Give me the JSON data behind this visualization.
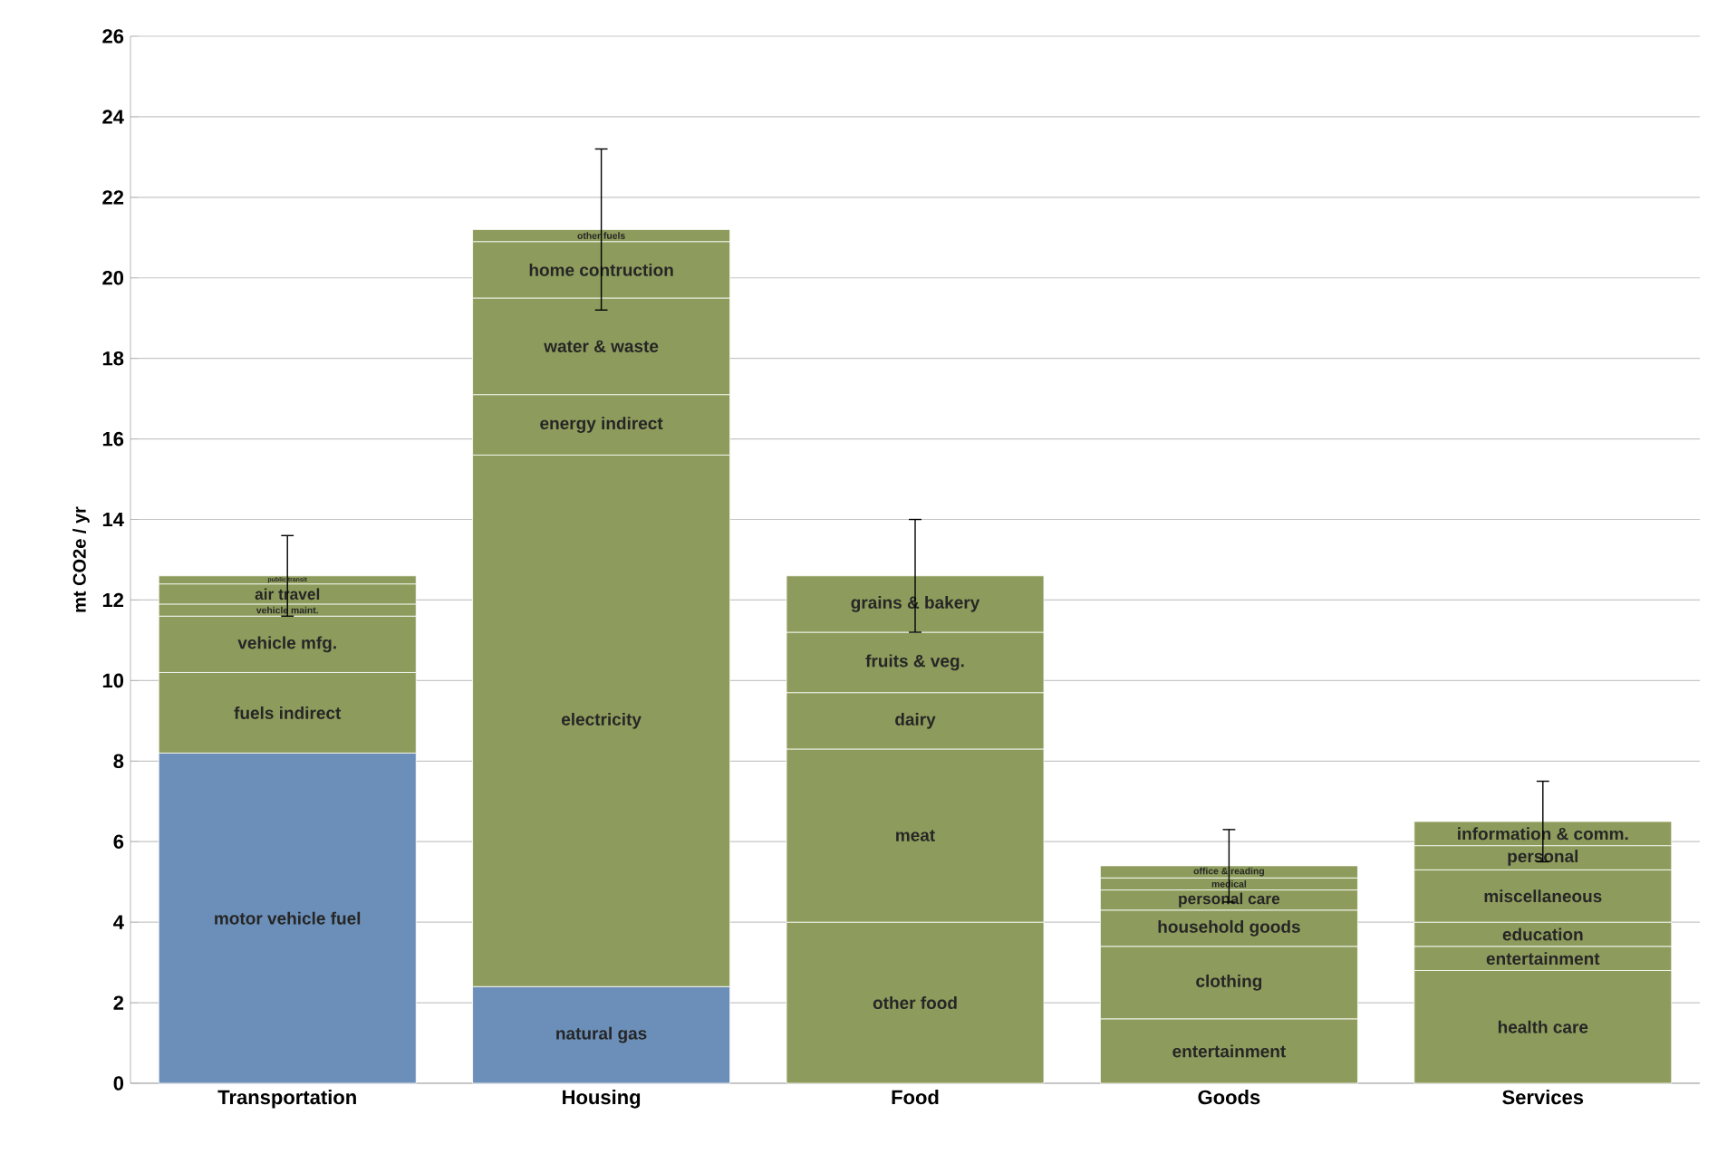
{
  "chart_data": {
    "type": "bar",
    "stacked": true,
    "ylabel": "mt CO2e / yr",
    "categories": [
      "Transportation",
      "Housing",
      "Food",
      "Goods",
      "Services"
    ],
    "ylim": [
      0,
      26
    ],
    "yticks": [
      0,
      2,
      4,
      6,
      8,
      10,
      12,
      14,
      16,
      18,
      20,
      22,
      24,
      26
    ],
    "grid": "y",
    "series": [
      {
        "name": "motor vehicle fuel",
        "color": "#6b8fb8",
        "values": [
          8.2,
          null,
          null,
          null,
          null
        ]
      },
      {
        "name": "fuels indirect",
        "color": "#8d9c5c",
        "values": [
          2.0,
          null,
          null,
          null,
          null
        ]
      },
      {
        "name": "vehicle mfg.",
        "color": "#8d9c5c",
        "values": [
          1.4,
          null,
          null,
          null,
          null
        ]
      },
      {
        "name": "vehicle maint.",
        "color": "#8d9c5c",
        "values": [
          0.3,
          null,
          null,
          null,
          null
        ]
      },
      {
        "name": "air travel",
        "color": "#8d9c5c",
        "values": [
          0.5,
          null,
          null,
          null,
          null
        ]
      },
      {
        "name": "public transit",
        "color": "#8d9c5c",
        "values": [
          0.2,
          null,
          null,
          null,
          null
        ],
        "errors": [
          1.0,
          null,
          null,
          null,
          null
        ]
      },
      {
        "name": "natural gas",
        "color": "#6b8fb8",
        "values": [
          null,
          2.4,
          null,
          null,
          null
        ]
      },
      {
        "name": "electricity",
        "color": "#8d9c5c",
        "values": [
          null,
          13.2,
          null,
          null,
          null
        ]
      },
      {
        "name": "energy indirect",
        "color": "#8d9c5c",
        "values": [
          null,
          1.5,
          null,
          null,
          null
        ]
      },
      {
        "name": "water & waste",
        "color": "#8d9c5c",
        "values": [
          null,
          2.4,
          null,
          null,
          null
        ]
      },
      {
        "name": "home contruction",
        "color": "#8d9c5c",
        "values": [
          null,
          1.4,
          null,
          null,
          null
        ]
      },
      {
        "name": "other fuels",
        "color": "#8d9c5c",
        "values": [
          null,
          0.3,
          null,
          null,
          null
        ],
        "errors": [
          null,
          2.0,
          null,
          null,
          null
        ]
      },
      {
        "name": "other food",
        "color": "#8d9c5c",
        "values": [
          null,
          null,
          4.0,
          null,
          null
        ]
      },
      {
        "name": "meat",
        "color": "#8d9c5c",
        "values": [
          null,
          null,
          4.3,
          null,
          null
        ]
      },
      {
        "name": "dairy",
        "color": "#8d9c5c",
        "values": [
          null,
          null,
          1.4,
          null,
          null
        ]
      },
      {
        "name": "fruits & veg.",
        "color": "#8d9c5c",
        "values": [
          null,
          null,
          1.5,
          null,
          null
        ]
      },
      {
        "name": "grains & bakery",
        "color": "#8d9c5c",
        "values": [
          null,
          null,
          1.4,
          null,
          null
        ],
        "errors": [
          null,
          null,
          1.4,
          null,
          null
        ]
      },
      {
        "name": "entertainment",
        "color": "#8d9c5c",
        "values": [
          null,
          null,
          null,
          1.6,
          null
        ]
      },
      {
        "name": "clothing",
        "color": "#8d9c5c",
        "values": [
          null,
          null,
          null,
          1.8,
          null
        ]
      },
      {
        "name": "household goods",
        "color": "#8d9c5c",
        "values": [
          null,
          null,
          null,
          0.9,
          null
        ]
      },
      {
        "name": "personal care",
        "color": "#8d9c5c",
        "values": [
          null,
          null,
          null,
          0.5,
          null
        ]
      },
      {
        "name": "medical",
        "color": "#8d9c5c",
        "values": [
          null,
          null,
          null,
          0.3,
          null
        ]
      },
      {
        "name": "office & reading",
        "color": "#8d9c5c",
        "values": [
          null,
          null,
          null,
          0.3,
          null
        ],
        "errors": [
          null,
          null,
          null,
          0.9,
          null
        ]
      },
      {
        "name": "health care",
        "color": "#8d9c5c",
        "values": [
          null,
          null,
          null,
          null,
          2.8
        ]
      },
      {
        "name": "entertainment",
        "color": "#8d9c5c",
        "values": [
          null,
          null,
          null,
          null,
          0.6
        ]
      },
      {
        "name": "education",
        "color": "#8d9c5c",
        "values": [
          null,
          null,
          null,
          null,
          0.6
        ]
      },
      {
        "name": "miscellaneous",
        "color": "#8d9c5c",
        "values": [
          null,
          null,
          null,
          null,
          1.3
        ]
      },
      {
        "name": "personal",
        "color": "#8d9c5c",
        "values": [
          null,
          null,
          null,
          null,
          0.6
        ]
      },
      {
        "name": "information & comm.",
        "color": "#8d9c5c",
        "values": [
          null,
          null,
          null,
          null,
          0.6
        ],
        "errors": [
          null,
          null,
          null,
          null,
          1.0
        ]
      }
    ]
  }
}
